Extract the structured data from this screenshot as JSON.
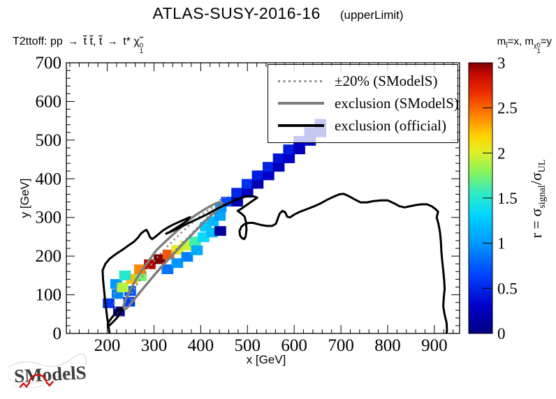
{
  "title": {
    "main": "ATLAS-SUSY-2016-16",
    "sub": "(upperLimit)"
  },
  "process_label": {
    "prefix": "T2ttoff: pp",
    "arrow1": "→",
    "stops": "t̃ t̃, t̃",
    "arrow2": "→",
    "tstar": "t*",
    "chi": "χ̃",
    "chi_sup": "0",
    "chi_sub": "1"
  },
  "mass_label": {
    "m1": "m",
    "m1_sub": "t̃",
    "mid": "=x, ",
    "m2": "m",
    "chi": "χ̃",
    "chi_sup": "0",
    "chi_sub": "1",
    "end": "=y"
  },
  "legend": {
    "entries": [
      {
        "label": "±20% (SModelS)",
        "line": "dotted-gray"
      },
      {
        "label": "exclusion (SModelS)",
        "line": "solid-gray"
      },
      {
        "label": "exclusion (official)",
        "line": "solid-black"
      }
    ]
  },
  "axes": {
    "x": {
      "title": "x [GeV]",
      "tick_labels": [
        "200",
        "300",
        "400",
        "500",
        "600",
        "700",
        "800",
        "900"
      ],
      "tick_values": [
        200,
        300,
        400,
        500,
        600,
        700,
        800,
        900
      ],
      "minor_step": 20
    },
    "y": {
      "title": "y [GeV]",
      "tick_labels": [
        "0",
        "100",
        "200",
        "300",
        "400",
        "500",
        "600",
        "700"
      ],
      "tick_values": [
        0,
        100,
        200,
        300,
        400,
        500,
        600,
        700
      ],
      "minor_step": 20
    }
  },
  "colorbar": {
    "ticks": [
      {
        "v": 0,
        "label": "0"
      },
      {
        "v": 0.5,
        "label": "0.5"
      },
      {
        "v": 1,
        "label": "1"
      },
      {
        "v": 1.5,
        "label": "1.5"
      },
      {
        "v": 2,
        "label": "2"
      },
      {
        "v": 2.5,
        "label": "2.5"
      },
      {
        "v": 3,
        "label": "3"
      }
    ],
    "title_parts": {
      "prefix": "r = ",
      "sigma1": "σ",
      "sub1": "signal",
      "slash": "/",
      "sigma2": "σ",
      "sub2": "UL"
    }
  },
  "logo": {
    "text": "SModelS"
  },
  "chart_data": {
    "type": "heatmap",
    "title": "ATLAS-SUSY-2016-16 (upperLimit)",
    "xlabel": "x [GeV]",
    "ylabel": "y [GeV]",
    "zlabel": "r = sigma_signal/sigma_UL",
    "x_range": [
      112.5,
      954
    ],
    "y_range": [
      0,
      700
    ],
    "z_range": [
      0,
      3
    ],
    "grid": false,
    "legend_position": "top-right",
    "cell_size": [
      25,
      25
    ],
    "cells": [
      [
        203,
        78,
        0.6
      ],
      [
        225,
        57,
        0.12
      ],
      [
        247,
        82,
        0.62
      ],
      [
        222,
        102,
        0.92
      ],
      [
        249,
        110,
        0.72
      ],
      [
        219,
        128,
        1.0
      ],
      [
        233,
        119,
        1.9
      ],
      [
        253,
        141,
        2.25
      ],
      [
        238,
        150,
        1.5
      ],
      [
        272,
        148,
        1.75
      ],
      [
        270,
        166,
        2.4
      ],
      [
        291,
        179,
        2.9
      ],
      [
        312,
        192,
        3.0
      ],
      [
        331,
        204,
        2.55
      ],
      [
        350,
        216,
        2.05
      ],
      [
        369,
        227,
        1.95
      ],
      [
        388,
        238,
        1.6
      ],
      [
        406,
        249,
        1.35
      ],
      [
        424,
        261,
        1.2
      ],
      [
        329,
        166,
        0.85
      ],
      [
        350,
        182,
        1.0
      ],
      [
        371,
        198,
        0.9
      ],
      [
        392,
        215,
        1.1
      ],
      [
        411,
        276,
        1.25
      ],
      [
        426,
        290,
        1.18
      ],
      [
        441,
        304,
        1.05
      ],
      [
        443,
        327,
        1.0
      ],
      [
        442,
        265,
        0.1
      ],
      [
        456,
        341,
        0.68
      ],
      [
        478,
        341,
        0.22
      ],
      [
        478,
        364,
        0.5
      ],
      [
        500,
        364,
        0.28
      ],
      [
        500,
        387,
        0.55
      ],
      [
        522,
        387,
        0.2
      ],
      [
        522,
        409,
        0.45
      ],
      [
        545,
        409,
        0.3
      ],
      [
        545,
        431,
        0.5
      ],
      [
        567,
        431,
        0.25
      ],
      [
        567,
        453,
        0.4
      ],
      [
        589,
        453,
        0.3
      ],
      [
        589,
        476,
        0.45
      ],
      [
        611,
        476,
        0.25
      ],
      [
        611,
        498,
        0.3
      ],
      [
        634,
        498,
        0.35
      ],
      [
        634,
        520,
        0.3
      ],
      [
        656,
        520,
        0.28
      ],
      [
        656,
        542,
        0.3
      ]
    ],
    "colormap": [
      [
        0,
        [
          0,
          0,
          130
        ]
      ],
      [
        0.1,
        [
          0,
          0,
          200
        ]
      ],
      [
        0.22,
        [
          0,
          70,
          255
        ]
      ],
      [
        0.33,
        [
          0,
          150,
          255
        ]
      ],
      [
        0.44,
        [
          0,
          215,
          255
        ]
      ],
      [
        0.52,
        [
          50,
          235,
          190
        ]
      ],
      [
        0.6,
        [
          140,
          245,
          90
        ]
      ],
      [
        0.67,
        [
          225,
          240,
          40
        ]
      ],
      [
        0.73,
        [
          255,
          210,
          0
        ]
      ],
      [
        0.81,
        [
          255,
          125,
          0
        ]
      ],
      [
        0.89,
        [
          238,
          45,
          0
        ]
      ],
      [
        0.96,
        [
          195,
          8,
          0
        ]
      ],
      [
        1,
        [
          125,
          0,
          0
        ]
      ]
    ],
    "contours": {
      "official_main": [
        [
          205,
          0
        ],
        [
          200,
          40
        ],
        [
          195,
          90
        ],
        [
          191,
          140
        ],
        [
          190,
          163
        ],
        [
          196,
          180
        ],
        [
          205,
          193
        ],
        [
          218,
          205
        ],
        [
          232,
          216
        ],
        [
          246,
          228
        ],
        [
          258,
          238
        ],
        [
          266,
          248
        ],
        [
          272,
          258
        ],
        [
          278,
          264
        ],
        [
          284,
          268
        ],
        [
          287,
          262
        ],
        [
          291,
          250
        ],
        [
          296,
          244
        ],
        [
          303,
          250
        ],
        [
          311,
          258
        ],
        [
          320,
          267
        ],
        [
          331,
          275
        ],
        [
          342,
          282
        ],
        [
          355,
          289
        ],
        [
          366,
          295
        ],
        [
          377,
          301
        ],
        [
          370,
          291
        ],
        [
          358,
          281
        ],
        [
          345,
          271
        ],
        [
          333,
          262
        ],
        [
          326,
          258
        ],
        [
          334,
          262
        ],
        [
          345,
          268
        ],
        [
          357,
          275
        ],
        [
          370,
          283
        ],
        [
          384,
          291
        ],
        [
          398,
          299
        ],
        [
          412,
          307
        ],
        [
          428,
          318
        ],
        [
          443,
          327
        ],
        [
          458,
          336
        ],
        [
          473,
          344
        ],
        [
          487,
          351
        ],
        [
          503,
          356
        ],
        [
          515,
          354
        ],
        [
          521,
          351
        ],
        [
          510,
          342
        ],
        [
          497,
          331
        ],
        [
          485,
          321
        ],
        [
          479,
          317
        ],
        [
          487,
          310
        ],
        [
          494,
          302
        ],
        [
          497,
          288
        ],
        [
          498,
          268
        ],
        [
          496,
          250
        ],
        [
          493,
          244
        ],
        [
          488,
          247
        ],
        [
          484,
          254
        ],
        [
          483,
          265
        ],
        [
          487,
          276
        ],
        [
          494,
          283
        ],
        [
          503,
          286
        ],
        [
          512,
          286
        ],
        [
          527,
          281
        ],
        [
          541,
          278
        ],
        [
          553,
          278
        ],
        [
          561,
          284
        ],
        [
          565,
          297
        ],
        [
          569,
          310
        ],
        [
          575,
          317
        ],
        [
          581,
          313
        ],
        [
          585,
          302
        ],
        [
          591,
          300
        ],
        [
          601,
          308
        ],
        [
          613,
          315
        ],
        [
          626,
          321
        ],
        [
          641,
          328
        ],
        [
          656,
          336
        ],
        [
          671,
          346
        ],
        [
          685,
          354
        ],
        [
          697,
          360
        ],
        [
          706,
          361
        ],
        [
          717,
          355
        ],
        [
          729,
          347
        ],
        [
          742,
          339
        ],
        [
          756,
          339
        ],
        [
          769,
          342
        ],
        [
          786,
          344
        ],
        [
          800,
          344
        ],
        [
          813,
          337
        ],
        [
          825,
          329
        ],
        [
          836,
          326
        ],
        [
          848,
          329
        ],
        [
          860,
          332
        ],
        [
          872,
          334
        ],
        [
          884,
          334
        ],
        [
          894,
          329
        ],
        [
          902,
          322
        ],
        [
          908,
          315
        ],
        [
          905,
          300
        ],
        [
          909,
          282
        ],
        [
          912,
          262
        ],
        [
          914,
          238
        ],
        [
          915,
          212
        ],
        [
          917,
          186
        ],
        [
          919,
          162
        ],
        [
          921,
          138
        ],
        [
          922,
          115
        ],
        [
          920,
          92
        ],
        [
          919,
          70
        ],
        [
          922,
          48
        ],
        [
          926,
          28
        ],
        [
          927,
          10
        ],
        [
          926,
          0
        ]
      ],
      "official_loop": [
        [
          204,
          20
        ],
        [
          211,
          28
        ],
        [
          219,
          38
        ],
        [
          227,
          50
        ],
        [
          232,
          60
        ],
        [
          231,
          66
        ],
        [
          224,
          61
        ],
        [
          216,
          50
        ],
        [
          208,
          38
        ],
        [
          202,
          28
        ],
        [
          201,
          22
        ],
        [
          204,
          20
        ]
      ],
      "smodels": [
        [
          233,
          65
        ],
        [
          240,
          90
        ],
        [
          250,
          115
        ],
        [
          262,
          140
        ],
        [
          275,
          165
        ],
        [
          290,
          190
        ],
        [
          305,
          215
        ],
        [
          322,
          235
        ],
        [
          340,
          255
        ],
        [
          358,
          275
        ],
        [
          376,
          295
        ],
        [
          394,
          310
        ],
        [
          410,
          322
        ],
        [
          425,
          332
        ],
        [
          438,
          339
        ],
        [
          446,
          338
        ],
        [
          440,
          325
        ],
        [
          428,
          312
        ],
        [
          414,
          296
        ],
        [
          399,
          278
        ],
        [
          383,
          258
        ],
        [
          366,
          237
        ],
        [
          349,
          215
        ],
        [
          332,
          193
        ],
        [
          316,
          172
        ],
        [
          300,
          150
        ],
        [
          285,
          128
        ],
        [
          271,
          108
        ],
        [
          258,
          88
        ],
        [
          247,
          72
        ],
        [
          239,
          63
        ],
        [
          233,
          65
        ]
      ],
      "pm20_inner": [
        [
          247,
          92
        ],
        [
          256,
          112
        ],
        [
          267,
          133
        ],
        [
          279,
          154
        ],
        [
          293,
          176
        ],
        [
          308,
          198
        ],
        [
          324,
          219
        ],
        [
          341,
          240
        ],
        [
          358,
          260
        ],
        [
          375,
          279
        ],
        [
          391,
          296
        ],
        [
          406,
          310
        ],
        [
          419,
          321
        ],
        [
          429,
          328
        ],
        [
          434,
          327
        ],
        [
          427,
          316
        ],
        [
          415,
          301
        ],
        [
          401,
          284
        ],
        [
          386,
          265
        ],
        [
          370,
          245
        ],
        [
          353,
          224
        ],
        [
          337,
          203
        ],
        [
          321,
          182
        ],
        [
          306,
          161
        ],
        [
          292,
          140
        ],
        [
          279,
          119
        ],
        [
          268,
          101
        ],
        [
          259,
          90
        ],
        [
          252,
          87
        ],
        [
          247,
          92
        ]
      ],
      "pm20_outer": [
        [
          221,
          130
        ],
        [
          216,
          108
        ],
        [
          214,
          86
        ],
        [
          217,
          64
        ],
        [
          224,
          48
        ],
        [
          233,
          40
        ]
      ],
      "pm20_tip": [
        [
          440,
          344
        ],
        [
          450,
          352
        ],
        [
          459,
          357
        ]
      ]
    },
    "styles": {
      "official_color": "#000000",
      "official_width": 3,
      "smodels_color": "#7d7d7d",
      "smodels_width": 3.4,
      "pm20_color": "#8a8a8a",
      "pm20_width": 2.6,
      "pm20_dash": "2.5 4.5"
    }
  }
}
